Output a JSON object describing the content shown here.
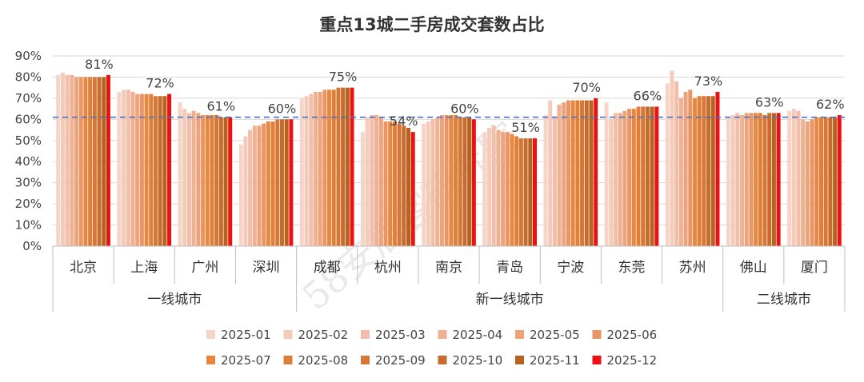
{
  "chart_data": {
    "type": "bar",
    "title": "重点13城二手房成交套数占比",
    "categories": [
      "北京",
      "上海",
      "广州",
      "深圳",
      "成都",
      "杭州",
      "南京",
      "青岛",
      "宁波",
      "东莞",
      "苏州",
      "佛山",
      "厦门"
    ],
    "groups": [
      {
        "label": "一线城市",
        "cities": [
          "北京",
          "上海",
          "广州",
          "深圳"
        ]
      },
      {
        "label": "新一线城市",
        "cities": [
          "成都",
          "杭州",
          "南京",
          "青岛",
          "宁波",
          "东莞",
          "苏州"
        ]
      },
      {
        "label": "二线城市",
        "cities": [
          "佛山",
          "厦门"
        ]
      }
    ],
    "series": [
      {
        "name": "2025-01",
        "color": "#f6d5c8",
        "values": [
          81,
          73,
          68,
          48,
          70,
          54,
          58,
          54,
          62,
          68,
          77,
          61,
          64
        ]
      },
      {
        "name": "2025-02",
        "color": "#f4cab9",
        "values": [
          82,
          74,
          65,
          52,
          71,
          61,
          59,
          56,
          69,
          60,
          83,
          62,
          65
        ]
      },
      {
        "name": "2025-03",
        "color": "#f2bea9",
        "values": [
          81,
          74,
          63,
          55,
          72,
          62,
          60,
          57,
          61,
          63,
          78,
          63,
          64
        ]
      },
      {
        "name": "2025-04",
        "color": "#eeb192",
        "values": [
          81,
          73,
          64,
          57,
          73,
          62,
          61,
          55,
          67,
          63,
          70,
          62,
          60
        ]
      },
      {
        "name": "2025-05",
        "color": "#eda47c",
        "values": [
          80,
          72,
          63,
          57,
          73,
          61,
          62,
          54,
          68,
          64,
          73,
          63,
          59
        ]
      },
      {
        "name": "2025-06",
        "color": "#e99566",
        "values": [
          80,
          72,
          62,
          58,
          74,
          59,
          62,
          54,
          69,
          65,
          74,
          63,
          60
        ]
      },
      {
        "name": "2025-07",
        "color": "#e8873e",
        "values": [
          80,
          72,
          62,
          59,
          74,
          59,
          62,
          53,
          69,
          65,
          70,
          63,
          61
        ]
      },
      {
        "name": "2025-08",
        "color": "#df7f3a",
        "values": [
          80,
          72,
          62,
          59,
          74,
          59,
          62,
          52,
          69,
          66,
          71,
          63,
          61
        ]
      },
      {
        "name": "2025-09",
        "color": "#d67735",
        "values": [
          80,
          71,
          62,
          60,
          75,
          58,
          61,
          51,
          69,
          66,
          71,
          62,
          61
        ]
      },
      {
        "name": "2025-10",
        "color": "#c86c2d",
        "values": [
          80,
          71,
          61,
          60,
          75,
          57,
          61,
          51,
          69,
          66,
          71,
          63,
          61
        ]
      },
      {
        "name": "2025-11",
        "color": "#b8621f",
        "values": [
          80,
          71,
          61,
          60,
          75,
          56,
          61,
          51,
          69,
          66,
          71,
          63,
          61
        ]
      },
      {
        "name": "2025-12",
        "color": "#ee1111",
        "values": [
          81,
          72,
          61,
          60,
          75,
          54,
          60,
          51,
          70,
          66,
          73,
          63,
          62
        ]
      }
    ],
    "data_labels": [
      "81%",
      "72%",
      "61%",
      "60%",
      "75%",
      "54%",
      "60%",
      "51%",
      "70%",
      "66%",
      "73%",
      "63%",
      "62%"
    ],
    "reference_line": {
      "value": 61,
      "style": "dashed",
      "color": "#4a6fc8"
    },
    "xlabel": "",
    "ylabel": "",
    "ylim": [
      0,
      90
    ],
    "yticks": [
      "0%",
      "10%",
      "20%",
      "30%",
      "40%",
      "50%",
      "60%",
      "70%",
      "80%",
      "90%"
    ],
    "grid": true,
    "legend_position": "bottom"
  },
  "watermark": "58安居客研究院"
}
